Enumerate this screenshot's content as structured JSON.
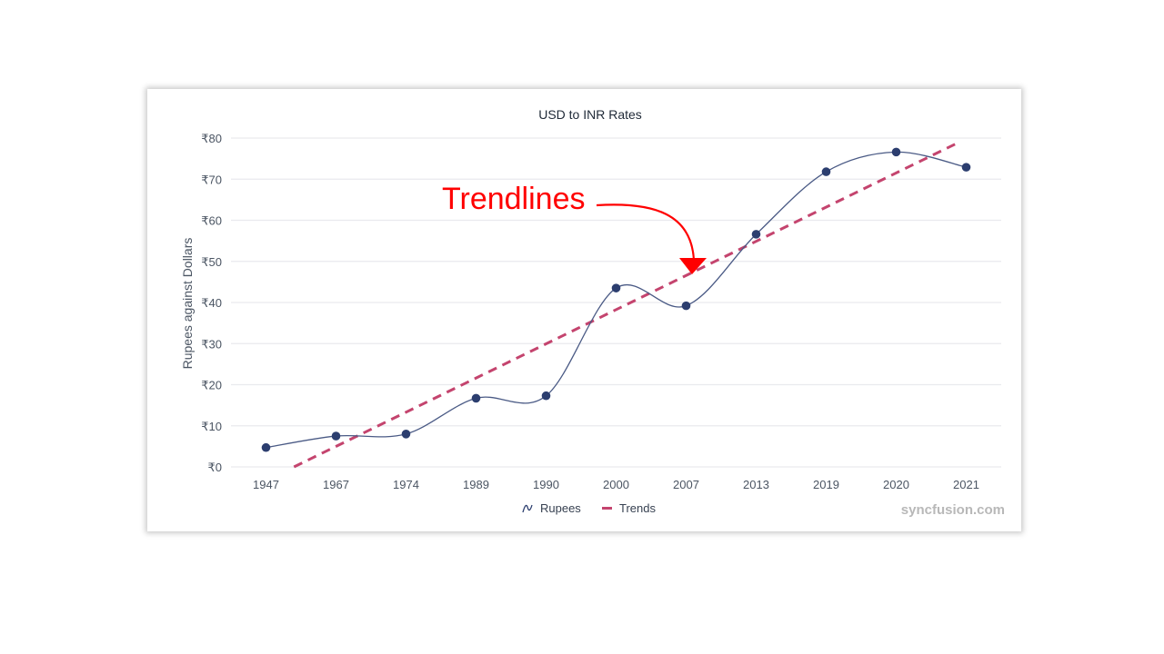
{
  "chart_data": {
    "type": "line",
    "title": "USD to INR Rates",
    "xlabel": "",
    "ylabel": "Rupees against Dollars",
    "ylim": [
      0,
      80
    ],
    "y_ticks": [
      "₹0",
      "₹10",
      "₹20",
      "₹30",
      "₹40",
      "₹50",
      "₹60",
      "₹70",
      "₹80"
    ],
    "categories": [
      "1947",
      "1967",
      "1974",
      "1989",
      "1990",
      "2000",
      "2007",
      "2013",
      "2019",
      "2020",
      "2021"
    ],
    "series": [
      {
        "name": "Rupees",
        "style": "spline with markers",
        "color": "#2c3e6f",
        "values": [
          4.7,
          7.5,
          8.0,
          16.7,
          17.3,
          43.5,
          39.2,
          56.6,
          71.8,
          76.6,
          72.9
        ]
      },
      {
        "name": "Trends",
        "style": "linear trendline, dashed",
        "color": "#c4446e",
        "start": {
          "x_index": 0.4,
          "value": 0
        },
        "end": {
          "x_index": 9.9,
          "value": 79
        }
      }
    ],
    "grid": true,
    "legend_position": "bottom",
    "annotations": [
      {
        "text": "Trendlines",
        "color": "#ff0000",
        "arrow_to": "Trends line near 2007"
      }
    ],
    "watermark": "syncfusion.com"
  },
  "chart": {
    "title": "USD to INR Rates",
    "y_axis_title": "Rupees against Dollars",
    "legend": {
      "items": [
        {
          "label": "Rupees",
          "icon": "spline-icon",
          "color": "#2c3e6f"
        },
        {
          "label": "Trends",
          "icon": "dash-icon",
          "color": "#c4446e"
        }
      ]
    },
    "annotation": "Trendlines",
    "watermark": "syncfusion.com"
  }
}
